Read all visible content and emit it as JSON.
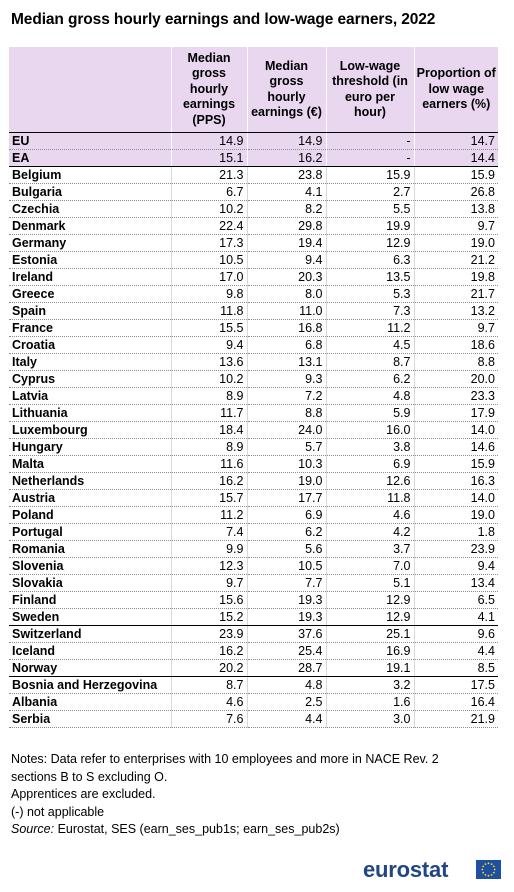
{
  "title": "Median gross hourly earnings and low-wage earners, 2022",
  "table": {
    "headers": [
      "",
      "Median gross hourly earnings (PPS)",
      "Median gross hourly earnings (€)",
      "Low-wage threshold (in euro per hour)",
      "Proportion of low wage earners (%)"
    ],
    "rows": [
      [
        "EU",
        "14.9",
        "14.9",
        "-",
        "14.7"
      ],
      [
        "EA",
        "15.1",
        "16.2",
        "-",
        "14.4"
      ],
      [
        "Belgium",
        "21.3",
        "23.8",
        "15.9",
        "15.9"
      ],
      [
        "Bulgaria",
        "6.7",
        "4.1",
        "2.7",
        "26.8"
      ],
      [
        "Czechia",
        "10.2",
        "8.2",
        "5.5",
        "13.8"
      ],
      [
        "Denmark",
        "22.4",
        "29.8",
        "19.9",
        "9.7"
      ],
      [
        "Germany",
        "17.3",
        "19.4",
        "12.9",
        "19.0"
      ],
      [
        "Estonia",
        "10.5",
        "9.4",
        "6.3",
        "21.2"
      ],
      [
        "Ireland",
        "17.0",
        "20.3",
        "13.5",
        "19.8"
      ],
      [
        "Greece",
        "9.8",
        "8.0",
        "5.3",
        "21.7"
      ],
      [
        "Spain",
        "11.8",
        "11.0",
        "7.3",
        "13.2"
      ],
      [
        "France",
        "15.5",
        "16.8",
        "11.2",
        "9.7"
      ],
      [
        "Croatia",
        "9.4",
        "6.8",
        "4.5",
        "18.6"
      ],
      [
        "Italy",
        "13.6",
        "13.1",
        "8.7",
        "8.8"
      ],
      [
        "Cyprus",
        "10.2",
        "9.3",
        "6.2",
        "20.0"
      ],
      [
        "Latvia",
        "8.9",
        "7.2",
        "4.8",
        "23.3"
      ],
      [
        "Lithuania",
        "11.7",
        "8.8",
        "5.9",
        "17.9"
      ],
      [
        "Luxembourg",
        "18.4",
        "24.0",
        "16.0",
        "14.0"
      ],
      [
        "Hungary",
        "8.9",
        "5.7",
        "3.8",
        "14.6"
      ],
      [
        "Malta",
        "11.6",
        "10.3",
        "6.9",
        "15.9"
      ],
      [
        "Netherlands",
        "16.2",
        "19.0",
        "12.6",
        "16.3"
      ],
      [
        "Austria",
        "15.7",
        "17.7",
        "11.8",
        "14.0"
      ],
      [
        "Poland",
        "11.2",
        "6.9",
        "4.6",
        "19.0"
      ],
      [
        "Portugal",
        "7.4",
        "6.2",
        "4.2",
        "1.8"
      ],
      [
        "Romania",
        "9.9",
        "5.6",
        "3.7",
        "23.9"
      ],
      [
        "Slovenia",
        "12.3",
        "10.5",
        "7.0",
        "9.4"
      ],
      [
        "Slovakia",
        "9.7",
        "7.7",
        "5.1",
        "13.4"
      ],
      [
        "Finland",
        "15.6",
        "19.3",
        "12.9",
        "6.5"
      ],
      [
        "Sweden",
        "15.2",
        "19.3",
        "12.9",
        "4.1"
      ],
      [
        "Switzerland",
        "23.9",
        "37.6",
        "25.1",
        "9.6"
      ],
      [
        "Iceland",
        "16.2",
        "25.4",
        "16.9",
        "4.4"
      ],
      [
        "Norway",
        "20.2",
        "28.7",
        "19.1",
        "8.5"
      ],
      [
        "Bosnia and Herzegovina",
        "8.7",
        "4.8",
        "3.2",
        "17.5"
      ],
      [
        "Albania",
        "4.6",
        "2.5",
        "1.6",
        "16.4"
      ],
      [
        "Serbia",
        "7.6",
        "4.4",
        "3.0",
        "21.9"
      ]
    ]
  },
  "notes": {
    "line1": "Notes: Data refer to enterprises with 10 employees and more in NACE Rev. 2",
    "line2": "sections B to S excluding O.",
    "line3": "Apprentices are excluded.",
    "line4": "(-) not applicable",
    "source_label": "Source:",
    "source_text": " Eurostat, SES (earn_ses_pub1s; earn_ses_pub2s)"
  },
  "logo": {
    "text": "eurostat",
    "brand_color": "#224583",
    "flag_color": "#1f4fa3",
    "star_color": "#ffdd00"
  }
}
